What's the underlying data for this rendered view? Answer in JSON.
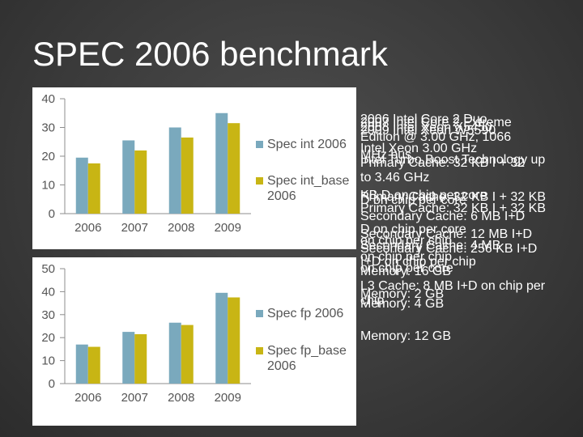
{
  "slide": {
    "title": "SPEC 2006 benchmark"
  },
  "colors": {
    "series_a": "#7aa9bd",
    "series_b": "#c8b514",
    "grid": "#8c8c8c",
    "panel": "#ffffff"
  },
  "chart_data": [
    {
      "type": "bar",
      "categories": [
        "2006",
        "2007",
        "2008",
        "2009"
      ],
      "series": [
        {
          "name": "Spec int 2006",
          "values": [
            19.5,
            25.5,
            30,
            35
          ]
        },
        {
          "name": "Spec int_base 2006",
          "values": [
            17.5,
            22,
            26.5,
            31.5
          ]
        }
      ],
      "ylim": [
        0,
        40
      ],
      "yticks": [
        0,
        10,
        20,
        30,
        40
      ],
      "legend_position": "right",
      "grid": false
    },
    {
      "type": "bar",
      "categories": [
        "2006",
        "2007",
        "2008",
        "2009"
      ],
      "series": [
        {
          "name": "Spec fp 2006",
          "values": [
            17,
            22.5,
            26.5,
            39.5
          ]
        },
        {
          "name": "Spec fp_base 2006",
          "values": [
            16,
            21.5,
            25.5,
            37.5
          ]
        }
      ],
      "ylim": [
        0,
        50
      ],
      "yticks": [
        0,
        10,
        20,
        30,
        40,
        50
      ],
      "legend_position": "right",
      "grid": false
    }
  ],
  "notes": [
    "2006 Intel Core 2 Duo",
    "2007 Intel Core 2 Extreme",
    "2008 Intel Xeon X5450",
    "2009 Intel Xeon W5590",
    "Edition @ 3.00 GHz, 1066",
    "Intel Xeon 3.00 GHz",
    "MHz bus",
    "Primary Cache: 32 KB I + 32",
    "Intel Turbo Boost Technology up",
    "to 3.46 GHz",
    "KB D on chip per core",
    "Primary Cache: 32 KB I + 32 KB",
    "D on chip per core",
    "Primary Cache: 32 KB I + 32 KB",
    "Secondary Cache: 6 MB I+D",
    "D on chip per core",
    "Secondary Cache: 12 MB I+D",
    "on chip per chip",
    "Secondary Cache: 4 MB",
    "Secondary Cache: 256 KB I+D",
    "on chip per chip",
    "I+D on chip per chip",
    "on chip per core",
    "Memory: 16 GB",
    "L3 Cache: 8 MB I+D on chip per",
    "Memory: 2 GB",
    "chip",
    "Memory: 4 GB",
    "Memory: 12 GB"
  ]
}
